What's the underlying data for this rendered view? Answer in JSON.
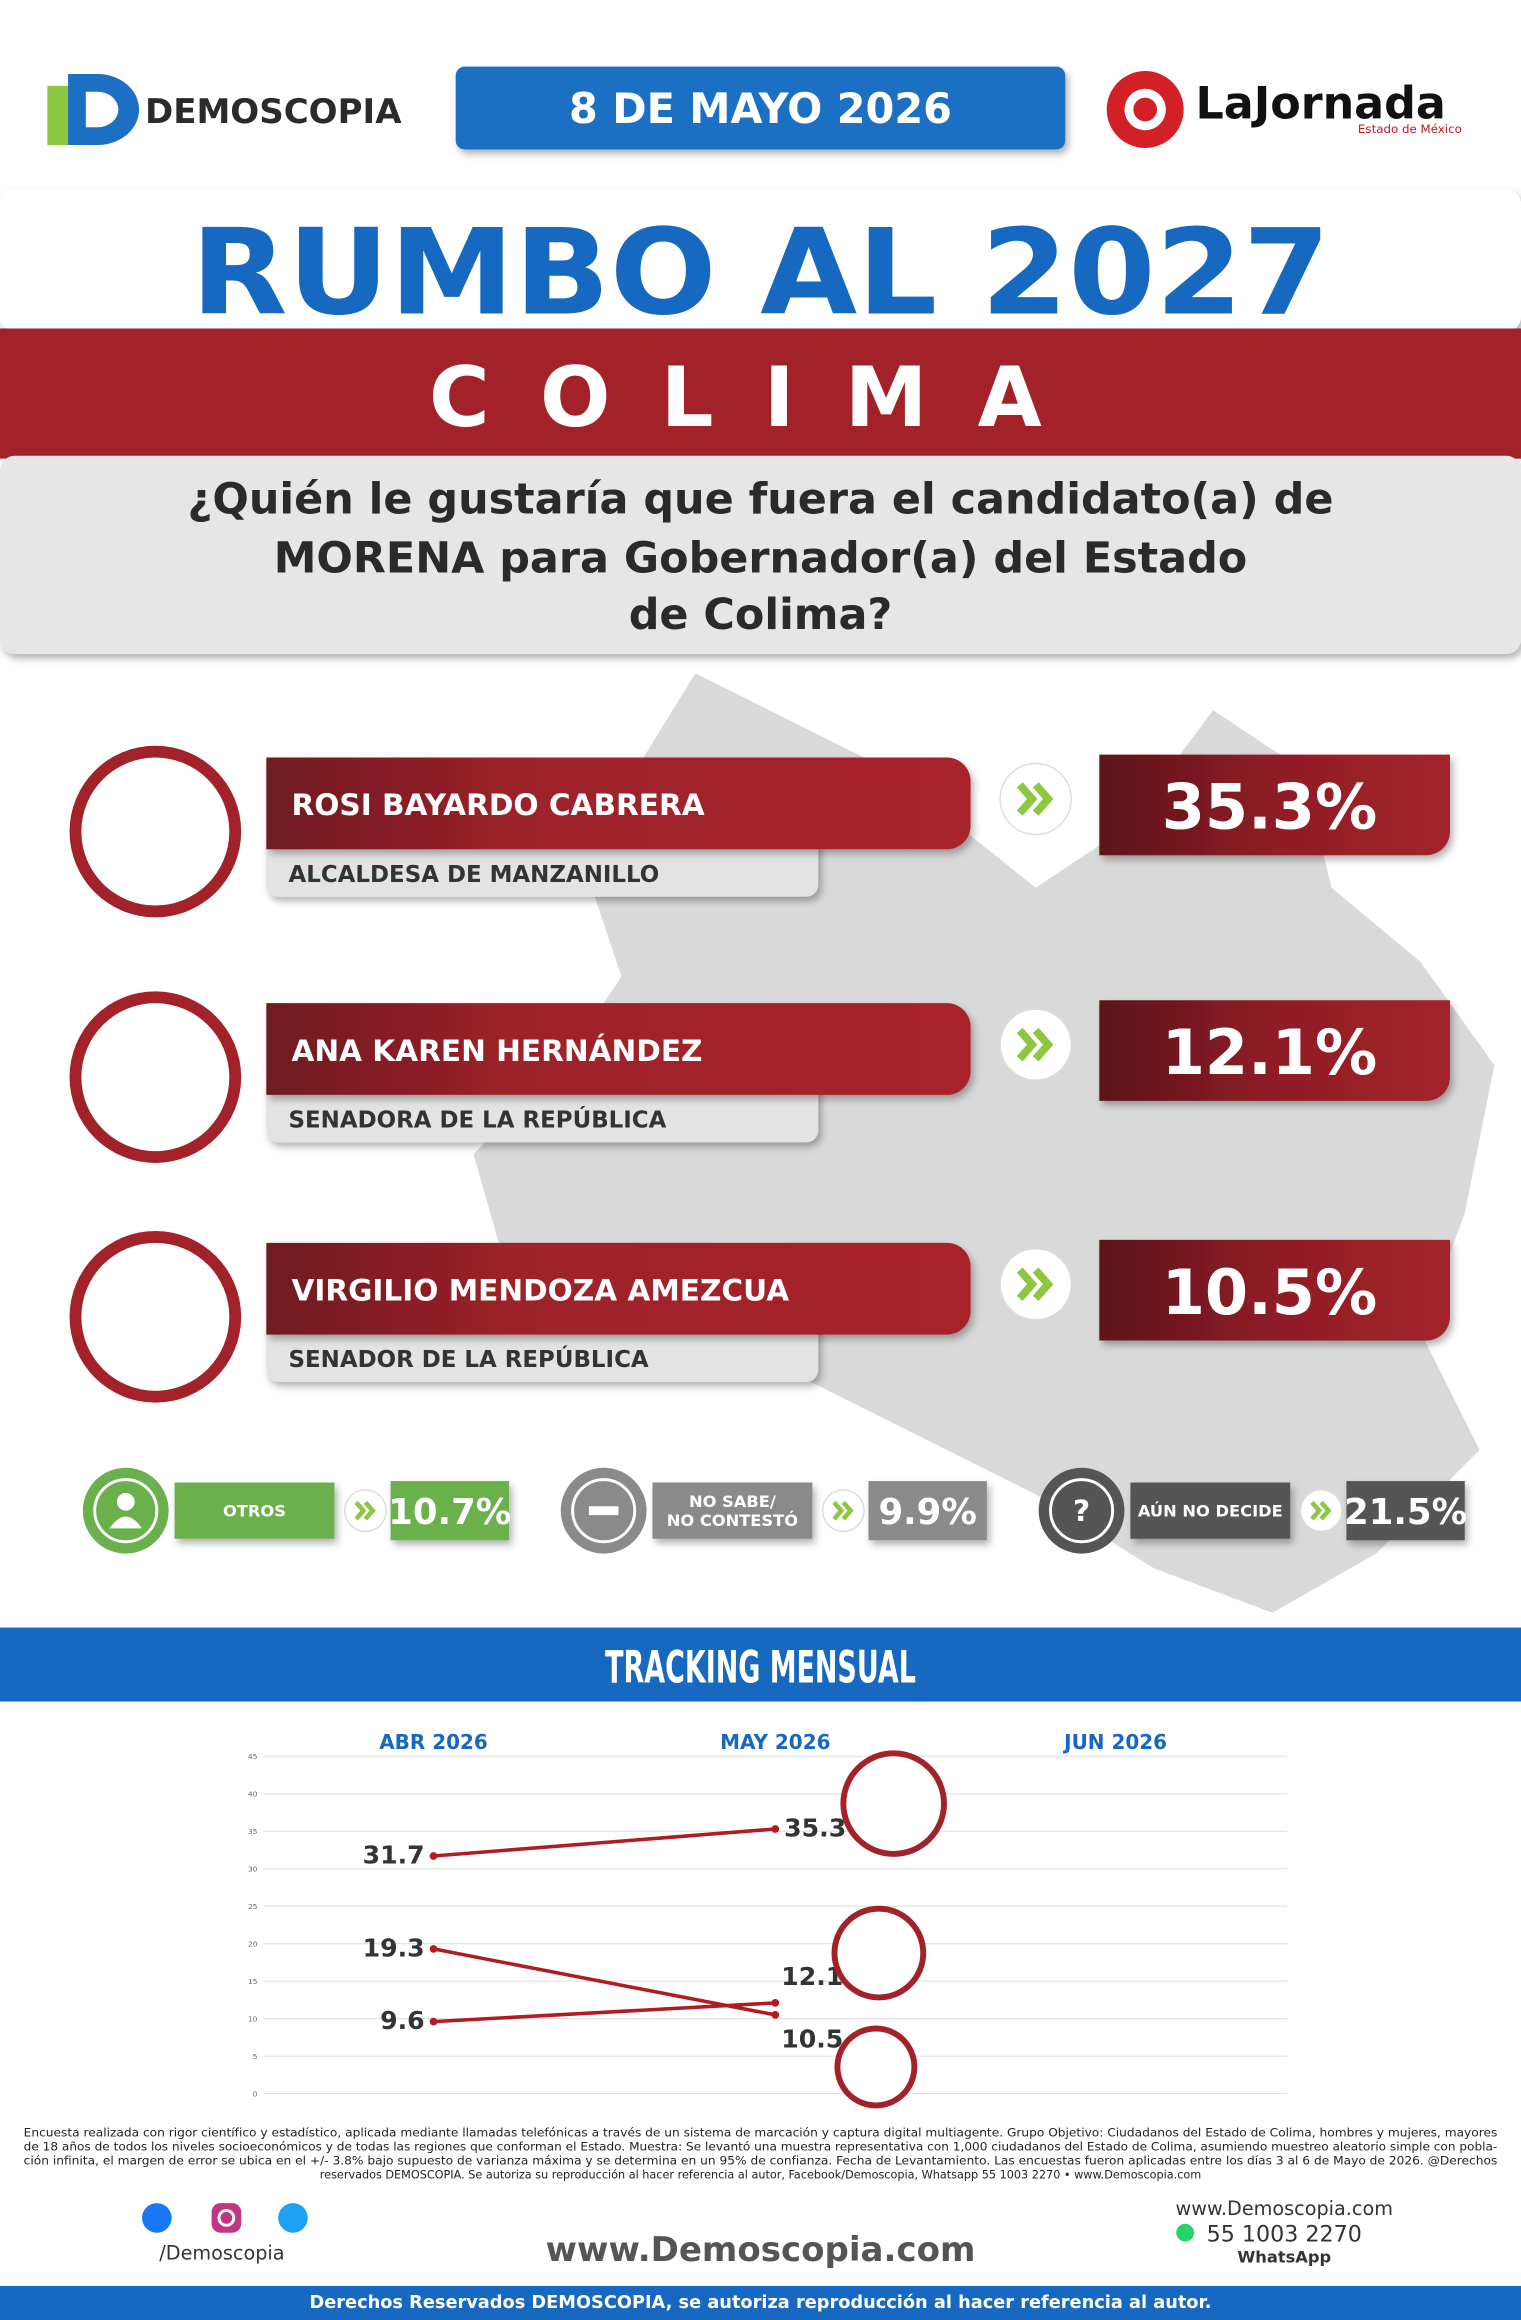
{
  "header": {
    "brand": "DEMOSCOPIA",
    "date": "8 DE MAYO 2026",
    "partner": "LaJornada",
    "partner_sub": "Estado de México"
  },
  "title": "RUMBO AL 2027",
  "state": "COLIMA",
  "question": [
    "¿Quién le gustaría que fuera el candidato(a) de",
    "MORENA para Gobernador(a) del Estado",
    "de Colima?"
  ],
  "candidates": [
    {
      "name": "ROSI BAYARDO CABRERA",
      "role": "ALCALDESA DE MANZANILLO",
      "percent": "35.3%"
    },
    {
      "name": "ANA KAREN HERNÁNDEZ",
      "role": "SENADORA DE LA REPÚBLICA",
      "percent": "12.1%"
    },
    {
      "name": "VIRGILIO MENDOZA AMEZCUA",
      "role": "SENADOR DE LA REPÚBLICA",
      "percent": "10.5%"
    }
  ],
  "others": [
    {
      "label": [
        "OTROS"
      ],
      "percent": "10.7%"
    },
    {
      "label": [
        "NO SABE/",
        "NO CONTESTÓ"
      ],
      "percent": "9.9%"
    },
    {
      "label": [
        "AÚN NO DECIDE"
      ],
      "percent": "21.5%"
    }
  ],
  "tracking_title": "TRACKING MENSUAL",
  "chart_data": {
    "type": "line",
    "categories": [
      "ABR 2026",
      "MAY 2026",
      "JUN 2026"
    ],
    "series": [
      {
        "color": "#b01c24",
        "values": [
          31.7,
          35.3,
          null
        ]
      },
      {
        "color": "#b01c24",
        "values": [
          9.6,
          12.1,
          null
        ]
      },
      {
        "color": "#b01c24",
        "values": [
          19.3,
          10.5,
          null
        ]
      }
    ],
    "ylim": [
      0,
      45
    ],
    "yticks": [
      0,
      5,
      10,
      15,
      20,
      25,
      30,
      35,
      40,
      45
    ],
    "grid": true
  },
  "footer": {
    "disclaimer": [
      "Encuesta realizada con rigor científico y estadístico, aplicada mediante llamadas telefónicas a través de un sistema de marcación y captura digital multiagente. Grupo Objetivo: Ciudadanos del Estado de Colima, hombres y mujeres, mayores",
      "de 18 años de todos los niveles socioeconómicos y de todas las regiones que conforman el Estado. Muestra: Se levantó una muestra representativa con 1,000 ciudadanos del Estado de Colima, asumiendo muestreo aleatorio simple con pobla-",
      "ción infinita, el margen de error se ubica en el +/- 3.8% bajo supuesto de varianza máxima y se determina en un 95% de confianza. Fecha de Levantamiento. Las encuestas fueron aplicadas entre los días 3 al 6 de Mayo de 2026. @Derechos",
      "reservados DEMOSCOPIA. Se autoriza su reproducción al hacer referencia al autor, Facebook/Demoscopia, Whatsapp 55 1003 2270 • www.Demoscopia.com"
    ],
    "social": "/Demoscopia",
    "website": "www.Demoscopia.com",
    "contact_site": "www.Demoscopia.com",
    "phone": "55 1003 2270",
    "whatsapp": "WhatsApp",
    "rights": "Derechos Reservados DEMOSCOPIA, se autoriza reproducción al hacer referencia al autor."
  }
}
